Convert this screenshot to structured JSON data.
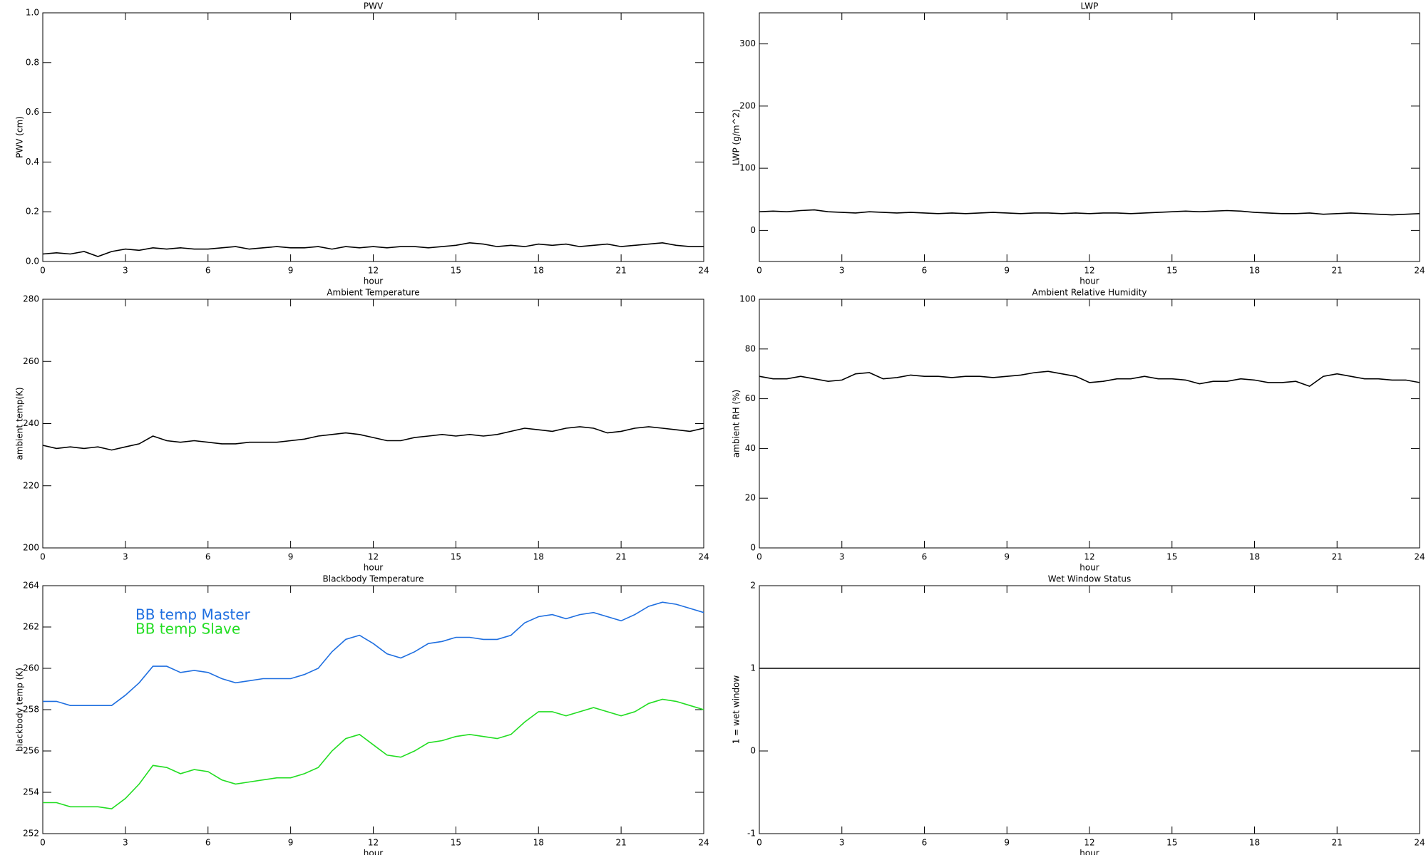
{
  "chart_data": [
    {
      "type": "line",
      "title": "PWV",
      "xlabel": "hour",
      "ylabel": "PWV (cm)",
      "x": [
        0,
        0.5,
        1,
        1.5,
        2,
        2.5,
        3,
        3.5,
        4,
        4.5,
        5,
        5.5,
        6,
        6.5,
        7,
        7.5,
        8,
        8.5,
        9,
        9.5,
        10,
        10.5,
        11,
        11.5,
        12,
        12.5,
        13,
        13.5,
        14,
        14.5,
        15,
        15.5,
        16,
        16.5,
        17,
        17.5,
        18,
        18.5,
        19,
        19.5,
        20,
        20.5,
        21,
        21.5,
        22,
        22.5,
        23,
        23.5,
        24
      ],
      "series": [
        {
          "color": "#000000",
          "values": [
            0.03,
            0.035,
            0.03,
            0.04,
            0.02,
            0.04,
            0.05,
            0.045,
            0.055,
            0.05,
            0.055,
            0.05,
            0.05,
            0.055,
            0.06,
            0.05,
            0.055,
            0.06,
            0.055,
            0.055,
            0.06,
            0.05,
            0.06,
            0.055,
            0.06,
            0.055,
            0.06,
            0.06,
            0.055,
            0.06,
            0.065,
            0.075,
            0.07,
            0.06,
            0.065,
            0.06,
            0.07,
            0.065,
            0.07,
            0.06,
            0.065,
            0.07,
            0.06,
            0.065,
            0.07,
            0.075,
            0.065,
            0.06,
            0.06
          ]
        }
      ],
      "xlim": [
        0,
        24
      ],
      "ylim": [
        0,
        1
      ],
      "xticks": [
        0,
        3,
        6,
        9,
        12,
        15,
        18,
        21,
        24
      ],
      "yticks": [
        {
          "value": 0,
          "label": "0.0"
        },
        0.2,
        0.4,
        0.6,
        0.8,
        {
          "value": 1,
          "label": "1.0"
        }
      ]
    },
    {
      "type": "line",
      "title": "LWP",
      "xlabel": "hour",
      "ylabel": "LWP (g/m^2)",
      "x": [
        0,
        0.5,
        1,
        1.5,
        2,
        2.5,
        3,
        3.5,
        4,
        4.5,
        5,
        5.5,
        6,
        6.5,
        7,
        7.5,
        8,
        8.5,
        9,
        9.5,
        10,
        10.5,
        11,
        11.5,
        12,
        12.5,
        13,
        13.5,
        14,
        14.5,
        15,
        15.5,
        16,
        16.5,
        17,
        17.5,
        18,
        18.5,
        19,
        19.5,
        20,
        20.5,
        21,
        21.5,
        22,
        22.5,
        23,
        23.5,
        24
      ],
      "series": [
        {
          "color": "#000000",
          "values": [
            30,
            31,
            30,
            32,
            33,
            30,
            29,
            28,
            30,
            29,
            28,
            29,
            28,
            27,
            28,
            27,
            28,
            29,
            28,
            27,
            28,
            28,
            27,
            28,
            27,
            28,
            28,
            27,
            28,
            29,
            30,
            31,
            30,
            31,
            32,
            31,
            29,
            28,
            27,
            27,
            28,
            26,
            27,
            28,
            27,
            26,
            25,
            26,
            27
          ]
        }
      ],
      "xlim": [
        0,
        24
      ],
      "ylim": [
        -50,
        350
      ],
      "xticks": [
        0,
        3,
        6,
        9,
        12,
        15,
        18,
        21,
        24
      ],
      "yticks": [
        0,
        100,
        200,
        300
      ]
    },
    {
      "type": "line",
      "title": "Ambient Temperature",
      "xlabel": "hour",
      "ylabel": "ambient temp(K)",
      "x": [
        0,
        0.5,
        1,
        1.5,
        2,
        2.5,
        3,
        3.5,
        4,
        4.5,
        5,
        5.5,
        6,
        6.5,
        7,
        7.5,
        8,
        8.5,
        9,
        9.5,
        10,
        10.5,
        11,
        11.5,
        12,
        12.5,
        13,
        13.5,
        14,
        14.5,
        15,
        15.5,
        16,
        16.5,
        17,
        17.5,
        18,
        18.5,
        19,
        19.5,
        20,
        20.5,
        21,
        21.5,
        22,
        22.5,
        23,
        23.5,
        24
      ],
      "series": [
        {
          "color": "#000000",
          "values": [
            233,
            232,
            232.5,
            232,
            232.5,
            231.5,
            232.5,
            233.5,
            236,
            234.5,
            234,
            234.5,
            234,
            233.5,
            233.5,
            234,
            234,
            234,
            234.5,
            235,
            236,
            236.5,
            237,
            236.5,
            235.5,
            234.5,
            234.5,
            235.5,
            236,
            236.5,
            236,
            236.5,
            236,
            236.5,
            237.5,
            238.5,
            238,
            237.5,
            238.5,
            239,
            238.5,
            237,
            237.5,
            238.5,
            239,
            238.5,
            238,
            237.5,
            238.5
          ]
        }
      ],
      "xlim": [
        0,
        24
      ],
      "ylim": [
        200,
        280
      ],
      "xticks": [
        0,
        3,
        6,
        9,
        12,
        15,
        18,
        21,
        24
      ],
      "yticks": [
        200,
        220,
        240,
        260,
        280
      ]
    },
    {
      "type": "line",
      "title": "Ambient Relative Humidity",
      "xlabel": "hour",
      "ylabel": "ambient RH (%)",
      "x": [
        0,
        0.5,
        1,
        1.5,
        2,
        2.5,
        3,
        3.5,
        4,
        4.5,
        5,
        5.5,
        6,
        6.5,
        7,
        7.5,
        8,
        8.5,
        9,
        9.5,
        10,
        10.5,
        11,
        11.5,
        12,
        12.5,
        13,
        13.5,
        14,
        14.5,
        15,
        15.5,
        16,
        16.5,
        17,
        17.5,
        18,
        18.5,
        19,
        19.5,
        20,
        20.5,
        21,
        21.5,
        22,
        22.5,
        23,
        23.5,
        24
      ],
      "series": [
        {
          "color": "#000000",
          "values": [
            69,
            68,
            68,
            69,
            68,
            67,
            67.5,
            70,
            70.5,
            68,
            68.5,
            69.5,
            69,
            69,
            68.5,
            69,
            69,
            68.5,
            69,
            69.5,
            70.5,
            71,
            70,
            69,
            66.5,
            67,
            68,
            68,
            69,
            68,
            68,
            67.5,
            66,
            67,
            67,
            68,
            67.5,
            66.5,
            66.5,
            67,
            65,
            69,
            70,
            69,
            68,
            68,
            67.5,
            67.5,
            66.5
          ]
        }
      ],
      "xlim": [
        0,
        24
      ],
      "ylim": [
        0,
        100
      ],
      "xticks": [
        0,
        3,
        6,
        9,
        12,
        15,
        18,
        21,
        24
      ],
      "yticks": [
        0,
        20,
        40,
        60,
        80,
        100
      ]
    },
    {
      "type": "line",
      "title": "Blackbody Temperature",
      "xlabel": "hour",
      "ylabel": "blackbody temp (K)",
      "legend": "upper left",
      "x": [
        0,
        0.5,
        1,
        1.5,
        2,
        2.5,
        3,
        3.5,
        4,
        4.5,
        5,
        5.5,
        6,
        6.5,
        7,
        7.5,
        8,
        8.5,
        9,
        9.5,
        10,
        10.5,
        11,
        11.5,
        12,
        12.5,
        13,
        13.5,
        14,
        14.5,
        15,
        15.5,
        16,
        16.5,
        17,
        17.5,
        18,
        18.5,
        19,
        19.5,
        20,
        20.5,
        21,
        21.5,
        22,
        22.5,
        23,
        23.5,
        24
      ],
      "series": [
        {
          "name": "BB temp Master",
          "color": "#1f6fe0",
          "values": [
            258.4,
            258.4,
            258.2,
            258.2,
            258.2,
            258.2,
            258.7,
            259.3,
            260.1,
            260.1,
            259.8,
            259.9,
            259.8,
            259.5,
            259.3,
            259.4,
            259.5,
            259.5,
            259.5,
            259.7,
            260,
            260.8,
            261.4,
            261.6,
            261.2,
            260.7,
            260.5,
            260.8,
            261.2,
            261.3,
            261.5,
            261.5,
            261.4,
            261.4,
            261.6,
            262.2,
            262.5,
            262.6,
            262.4,
            262.6,
            262.7,
            262.5,
            262.3,
            262.6,
            263,
            263.2,
            263.1,
            262.9,
            262.7
          ]
        },
        {
          "name": "BB temp Slave",
          "color": "#22dd22",
          "values": [
            253.5,
            253.5,
            253.3,
            253.3,
            253.3,
            253.2,
            253.7,
            254.4,
            255.3,
            255.2,
            254.9,
            255.1,
            255,
            254.6,
            254.4,
            254.5,
            254.6,
            254.7,
            254.7,
            254.9,
            255.2,
            256,
            256.6,
            256.8,
            256.3,
            255.8,
            255.7,
            256,
            256.4,
            256.5,
            256.7,
            256.8,
            256.7,
            256.6,
            256.8,
            257.4,
            257.9,
            257.9,
            257.7,
            257.9,
            258.1,
            257.9,
            257.7,
            257.9,
            258.3,
            258.5,
            258.4,
            258.2,
            258
          ]
        }
      ],
      "xlim": [
        0,
        24
      ],
      "ylim": [
        252,
        264
      ],
      "xticks": [
        0,
        3,
        6,
        9,
        12,
        15,
        18,
        21,
        24
      ],
      "yticks": [
        252,
        254,
        256,
        258,
        260,
        262,
        264
      ]
    },
    {
      "type": "line",
      "title": "Wet Window Status",
      "xlabel": "hour",
      "ylabel": "1 = wet window",
      "x": [
        0,
        24
      ],
      "series": [
        {
          "color": "#000000",
          "values": [
            1,
            1
          ]
        }
      ],
      "xlim": [
        0,
        24
      ],
      "ylim": [
        -1,
        2
      ],
      "xticks": [
        0,
        3,
        6,
        9,
        12,
        15,
        18,
        21,
        24
      ],
      "yticks": [
        -1,
        0,
        1,
        2
      ]
    }
  ]
}
